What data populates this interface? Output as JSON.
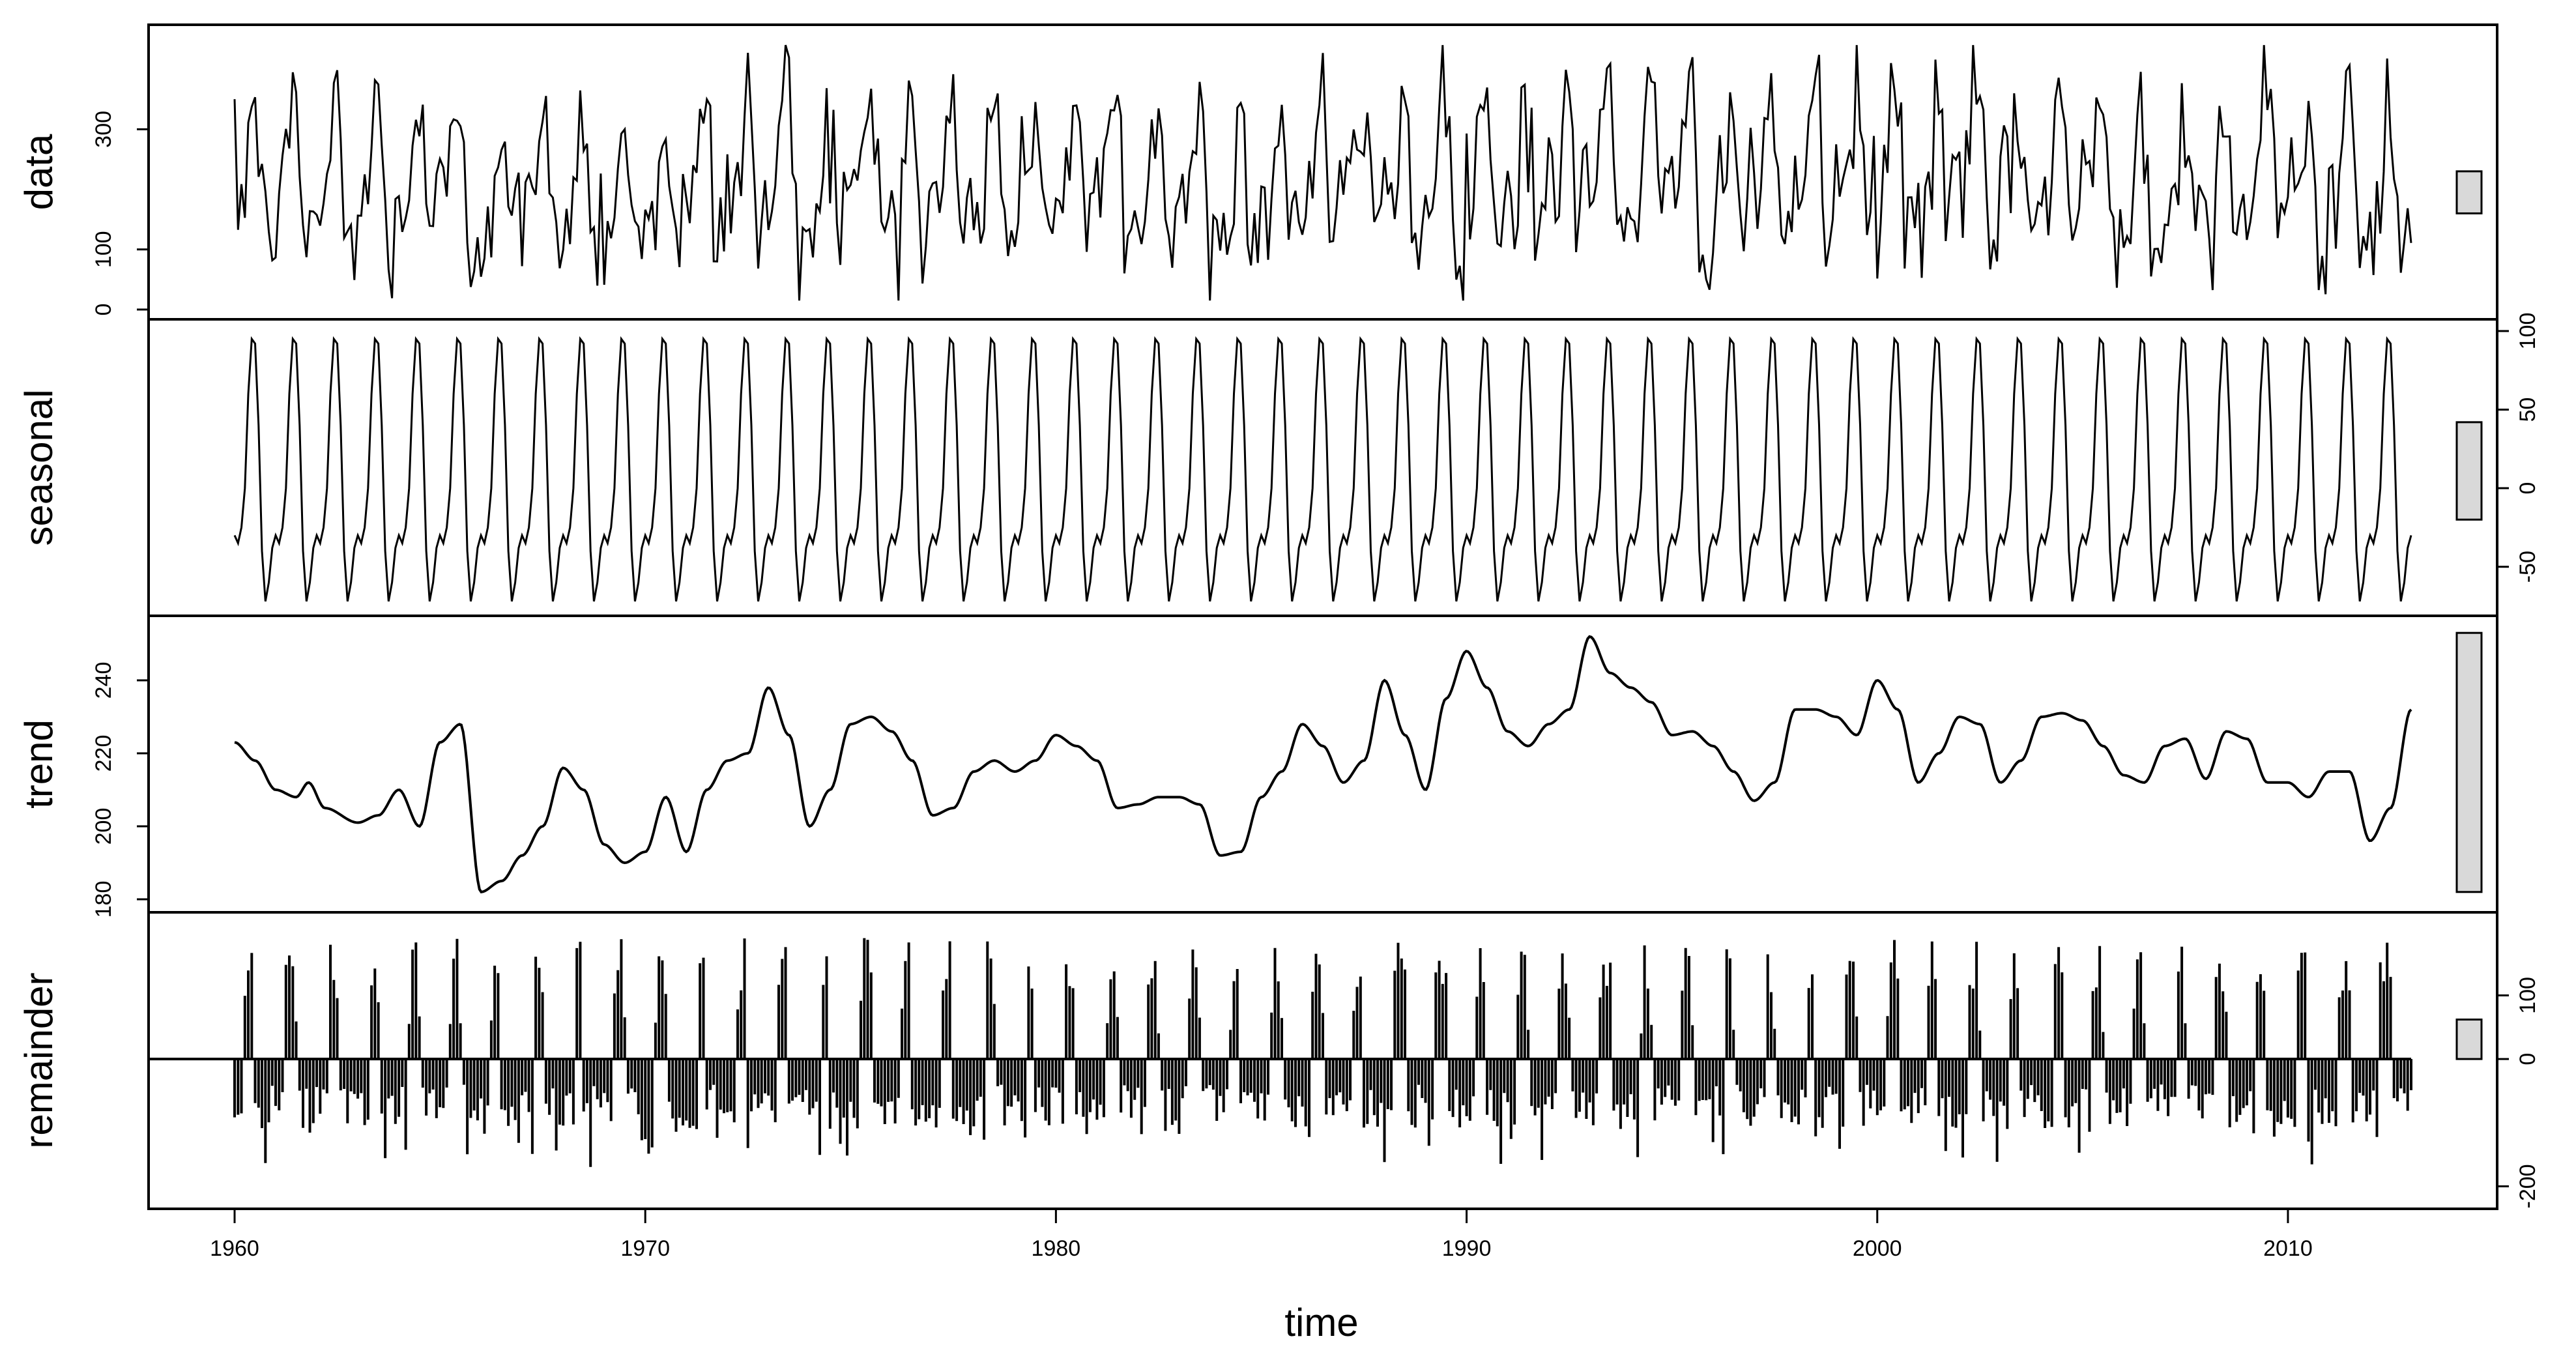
{
  "chart_data": {
    "type": "line",
    "figure_kind": "stl-decomposition",
    "x_axis": {
      "label": "time",
      "range": [
        1960,
        2013
      ],
      "ticks": [
        1960,
        1970,
        1980,
        1990,
        2000,
        2010
      ]
    },
    "panels": [
      {
        "name": "data",
        "label": "data",
        "ylim": [
          0,
          450
        ],
        "ticks_side": "left",
        "ticks": [
          0,
          100,
          300
        ],
        "range_bar": [
          160,
          230
        ],
        "series": {
          "kind": "seasonal+trend+noise",
          "start": 1960,
          "end": 2013,
          "frequency": 12,
          "mean": 215,
          "amplitude": 125,
          "noise": 60,
          "min": 15,
          "max": 440
        }
      },
      {
        "name": "seasonal",
        "label": "seasonal",
        "ylim": [
          -75,
          100
        ],
        "ticks_side": "right",
        "ticks": [
          -50,
          0,
          50,
          100
        ],
        "range_bar": [
          -20,
          42
        ],
        "series": {
          "kind": "seasonal",
          "start": 1960,
          "end": 2013,
          "frequency": 12,
          "cycle": [
            -30,
            -35,
            -25,
            0,
            60,
            95,
            92,
            40,
            -40,
            -72,
            -60,
            -38
          ]
        }
      },
      {
        "name": "trend",
        "label": "trend",
        "ylim": [
          180,
          255
        ],
        "ticks_side": "left",
        "ticks": [
          180,
          200,
          220,
          240
        ],
        "range_bar": [
          182,
          253
        ],
        "series": {
          "kind": "keypoints",
          "points": [
            [
              1960.0,
              223
            ],
            [
              1960.5,
              218
            ],
            [
              1961.0,
              210
            ],
            [
              1961.5,
              208
            ],
            [
              1961.8,
              212
            ],
            [
              1962.2,
              205
            ],
            [
              1963.0,
              201
            ],
            [
              1963.5,
              203
            ],
            [
              1964.0,
              210
            ],
            [
              1964.5,
              200
            ],
            [
              1965.0,
              223
            ],
            [
              1965.5,
              228
            ],
            [
              1966.0,
              182
            ],
            [
              1966.5,
              185
            ],
            [
              1967.0,
              192
            ],
            [
              1967.5,
              200
            ],
            [
              1968.0,
              216
            ],
            [
              1968.5,
              210
            ],
            [
              1969.0,
              195
            ],
            [
              1969.5,
              190
            ],
            [
              1970.0,
              193
            ],
            [
              1970.5,
              208
            ],
            [
              1971.0,
              193
            ],
            [
              1971.5,
              210
            ],
            [
              1972.0,
              218
            ],
            [
              1972.5,
              220
            ],
            [
              1973.0,
              238
            ],
            [
              1973.5,
              225
            ],
            [
              1974.0,
              200
            ],
            [
              1974.5,
              210
            ],
            [
              1975.0,
              228
            ],
            [
              1975.5,
              230
            ],
            [
              1976.0,
              226
            ],
            [
              1976.5,
              218
            ],
            [
              1977.0,
              203
            ],
            [
              1977.5,
              205
            ],
            [
              1978.0,
              215
            ],
            [
              1978.5,
              218
            ],
            [
              1979.0,
              215
            ],
            [
              1979.5,
              218
            ],
            [
              1980.0,
              225
            ],
            [
              1980.5,
              222
            ],
            [
              1981.0,
              218
            ],
            [
              1981.5,
              205
            ],
            [
              1982.0,
              206
            ],
            [
              1982.5,
              208
            ],
            [
              1983.0,
              208
            ],
            [
              1983.5,
              206
            ],
            [
              1984.0,
              192
            ],
            [
              1984.5,
              193
            ],
            [
              1985.0,
              208
            ],
            [
              1985.5,
              215
            ],
            [
              1986.0,
              228
            ],
            [
              1986.5,
              222
            ],
            [
              1987.0,
              212
            ],
            [
              1987.5,
              218
            ],
            [
              1988.0,
              240
            ],
            [
              1988.5,
              225
            ],
            [
              1989.0,
              210
            ],
            [
              1989.5,
              235
            ],
            [
              1990.0,
              248
            ],
            [
              1990.5,
              238
            ],
            [
              1991.0,
              226
            ],
            [
              1991.5,
              222
            ],
            [
              1992.0,
              228
            ],
            [
              1992.5,
              232
            ],
            [
              1993.0,
              252
            ],
            [
              1993.5,
              242
            ],
            [
              1994.0,
              238
            ],
            [
              1994.5,
              234
            ],
            [
              1995.0,
              225
            ],
            [
              1995.5,
              226
            ],
            [
              1996.0,
              222
            ],
            [
              1996.5,
              215
            ],
            [
              1997.0,
              207
            ],
            [
              1997.5,
              212
            ],
            [
              1998.0,
              232
            ],
            [
              1998.5,
              232
            ],
            [
              1999.0,
              230
            ],
            [
              1999.5,
              225
            ],
            [
              2000.0,
              240
            ],
            [
              2000.5,
              232
            ],
            [
              2001.0,
              212
            ],
            [
              2001.5,
              220
            ],
            [
              2002.0,
              230
            ],
            [
              2002.5,
              228
            ],
            [
              2003.0,
              212
            ],
            [
              2003.5,
              218
            ],
            [
              2004.0,
              230
            ],
            [
              2004.5,
              231
            ],
            [
              2005.0,
              229
            ],
            [
              2005.5,
              222
            ],
            [
              2006.0,
              214
            ],
            [
              2006.5,
              212
            ],
            [
              2007.0,
              222
            ],
            [
              2007.5,
              224
            ],
            [
              2008.0,
              213
            ],
            [
              2008.5,
              226
            ],
            [
              2009.0,
              224
            ],
            [
              2009.5,
              212
            ],
            [
              2010.0,
              212
            ],
            [
              2010.5,
              208
            ],
            [
              2011.0,
              215
            ],
            [
              2011.5,
              215
            ],
            [
              2012.0,
              196
            ],
            [
              2012.5,
              205
            ],
            [
              2013.0,
              232
            ]
          ]
        }
      },
      {
        "name": "remainder",
        "label": "remainder",
        "ylim": [
          -220,
          210
        ],
        "ticks_side": "right",
        "ticks": [
          -200,
          0,
          100
        ],
        "range_bar": [
          0,
          62
        ],
        "baseline": 0,
        "series": {
          "kind": "bars",
          "start": 1960,
          "end": 2013,
          "frequency": 12,
          "pos_max": 190,
          "neg_min": -175
        }
      }
    ]
  }
}
